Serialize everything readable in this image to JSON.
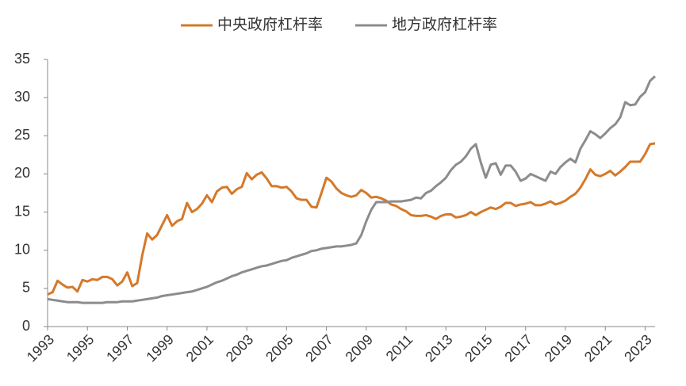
{
  "chart_data": {
    "type": "line",
    "x": [
      1993,
      1993.25,
      1993.5,
      1993.75,
      1994,
      1994.25,
      1994.5,
      1994.75,
      1995,
      1995.25,
      1995.5,
      1995.75,
      1996,
      1996.25,
      1996.5,
      1996.75,
      1997,
      1997.25,
      1997.5,
      1997.75,
      1998,
      1998.25,
      1998.5,
      1998.75,
      1999,
      1999.25,
      1999.5,
      1999.75,
      2000,
      2000.25,
      2000.5,
      2000.75,
      2001,
      2001.25,
      2001.5,
      2001.75,
      2002,
      2002.25,
      2002.5,
      2002.75,
      2003,
      2003.25,
      2003.5,
      2003.75,
      2004,
      2004.25,
      2004.5,
      2004.75,
      2005,
      2005.25,
      2005.5,
      2005.75,
      2006,
      2006.25,
      2006.5,
      2006.75,
      2007,
      2007.25,
      2007.5,
      2007.75,
      2008,
      2008.25,
      2008.5,
      2008.75,
      2009,
      2009.25,
      2009.5,
      2009.75,
      2010,
      2010.25,
      2010.5,
      2010.75,
      2011,
      2011.25,
      2011.5,
      2011.75,
      2012,
      2012.25,
      2012.5,
      2012.75,
      2013,
      2013.25,
      2013.5,
      2013.75,
      2014,
      2014.25,
      2014.5,
      2014.75,
      2015,
      2015.25,
      2015.5,
      2015.75,
      2016,
      2016.25,
      2016.5,
      2016.75,
      2017,
      2017.25,
      2017.5,
      2017.75,
      2018,
      2018.25,
      2018.5,
      2018.75,
      2019,
      2019.25,
      2019.5,
      2019.75,
      2020,
      2020.25,
      2020.5,
      2020.75,
      2021,
      2021.25,
      2021.5,
      2021.75,
      2022,
      2022.25,
      2022.5,
      2022.75,
      2023,
      2023.25,
      2023.5
    ],
    "series": [
      {
        "name": "中央政府杠杆率",
        "color": "#d4792b",
        "values": [
          4.2,
          4.5,
          6.0,
          5.5,
          5.1,
          5.2,
          4.6,
          6.1,
          5.9,
          6.2,
          6.1,
          6.5,
          6.5,
          6.2,
          5.4,
          5.9,
          7.1,
          5.3,
          5.7,
          9.3,
          12.2,
          11.4,
          12.0,
          13.3,
          14.6,
          13.2,
          13.8,
          14.1,
          16.2,
          15.0,
          15.4,
          16.1,
          17.2,
          16.3,
          17.7,
          18.2,
          18.3,
          17.4,
          18.0,
          18.3,
          20.1,
          19.3,
          19.9,
          20.2,
          19.4,
          18.4,
          18.4,
          18.2,
          18.3,
          17.7,
          16.8,
          16.6,
          16.6,
          15.7,
          15.6,
          17.5,
          19.5,
          19.0,
          18.1,
          17.5,
          17.2,
          17.0,
          17.2,
          17.9,
          17.5,
          16.9,
          17.0,
          16.8,
          16.5,
          16.0,
          15.8,
          15.4,
          15.1,
          14.6,
          14.5,
          14.5,
          14.6,
          14.4,
          14.1,
          14.5,
          14.7,
          14.7,
          14.3,
          14.4,
          14.6,
          15.0,
          14.6,
          15.0,
          15.3,
          15.6,
          15.4,
          15.7,
          16.2,
          16.2,
          15.8,
          16.0,
          16.1,
          16.3,
          15.9,
          15.9,
          16.1,
          16.4,
          16.0,
          16.2,
          16.5,
          17.0,
          17.4,
          18.2,
          19.3,
          20.6,
          19.9,
          19.7,
          20.0,
          20.4,
          19.8,
          20.3,
          20.9,
          21.6,
          21.6,
          21.6,
          22.6,
          23.9,
          24.0
        ]
      },
      {
        "name": "地方政府杠杆率",
        "color": "#8c8c8c",
        "values": [
          3.6,
          3.5,
          3.4,
          3.3,
          3.2,
          3.2,
          3.2,
          3.1,
          3.1,
          3.1,
          3.1,
          3.1,
          3.2,
          3.2,
          3.2,
          3.3,
          3.3,
          3.3,
          3.4,
          3.5,
          3.6,
          3.7,
          3.8,
          4.0,
          4.1,
          4.2,
          4.3,
          4.4,
          4.5,
          4.6,
          4.8,
          5.0,
          5.2,
          5.5,
          5.8,
          6.0,
          6.3,
          6.6,
          6.8,
          7.1,
          7.3,
          7.5,
          7.7,
          7.9,
          8.0,
          8.2,
          8.4,
          8.6,
          8.7,
          9.0,
          9.2,
          9.4,
          9.6,
          9.9,
          10.0,
          10.2,
          10.3,
          10.4,
          10.5,
          10.5,
          10.6,
          10.7,
          10.9,
          12.0,
          13.8,
          15.3,
          16.3,
          16.3,
          16.3,
          16.4,
          16.4,
          16.4,
          16.5,
          16.6,
          16.9,
          16.8,
          17.5,
          17.8,
          18.4,
          18.9,
          19.5,
          20.5,
          21.2,
          21.6,
          22.3,
          23.3,
          23.9,
          21.5,
          19.5,
          21.2,
          21.4,
          19.9,
          21.1,
          21.1,
          20.3,
          19.1,
          19.4,
          20.0,
          19.7,
          19.4,
          19.1,
          20.3,
          20.0,
          20.9,
          21.5,
          22.0,
          21.5,
          23.3,
          24.4,
          25.6,
          25.2,
          24.7,
          25.3,
          26.0,
          26.5,
          27.4,
          29.4,
          29.0,
          29.1,
          30.1,
          30.7,
          32.2,
          32.8
        ]
      }
    ],
    "xlim": [
      1993,
      2023.5
    ],
    "xticks": [
      1993,
      1995,
      1997,
      1999,
      2001,
      2003,
      2005,
      2007,
      2009,
      2011,
      2013,
      2015,
      2017,
      2019,
      2021,
      2023
    ],
    "ylim": [
      0,
      35
    ],
    "yticks": [
      0,
      5,
      10,
      15,
      20,
      25,
      30,
      35
    ],
    "grid": false,
    "legend": "top"
  }
}
